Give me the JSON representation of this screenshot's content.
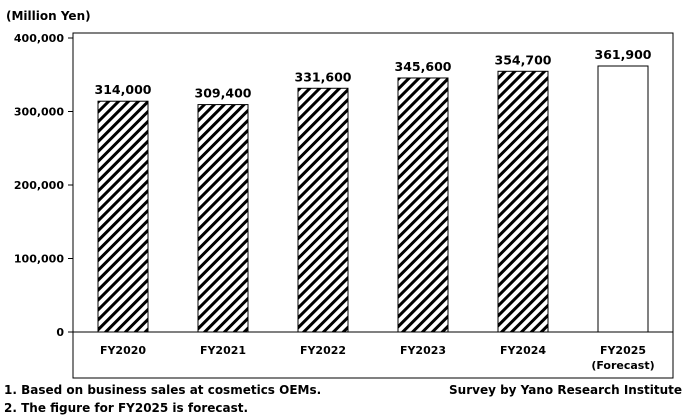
{
  "chart_data": {
    "type": "bar",
    "ylabel": "(Million Yen)",
    "categories": [
      "FY2020",
      "FY2021",
      "FY2022",
      "FY2023",
      "FY2024",
      "FY2025"
    ],
    "category_sublabels": [
      "",
      "",
      "",
      "",
      "",
      "(Forecast)"
    ],
    "values": [
      314000,
      309400,
      331600,
      345600,
      354700,
      361900
    ],
    "value_labels": [
      "314,000",
      "309,400",
      "331,600",
      "345,600",
      "354,700",
      "361,900"
    ],
    "bar_styles": [
      "hatched",
      "hatched",
      "hatched",
      "hatched",
      "hatched",
      "plain"
    ],
    "ylim": [
      0,
      400000
    ],
    "yticks": [
      0,
      100000,
      200000,
      300000,
      400000
    ],
    "ytick_labels": [
      "0",
      "100,000",
      "200,000",
      "300,000",
      "400,000"
    ],
    "grid": false
  },
  "notes": {
    "footnote_1": "1. Based on business sales at cosmetics OEMs.",
    "footnote_2": "2. The figure for FY2025 is forecast.",
    "source": "Survey by Yano Research Institute"
  }
}
